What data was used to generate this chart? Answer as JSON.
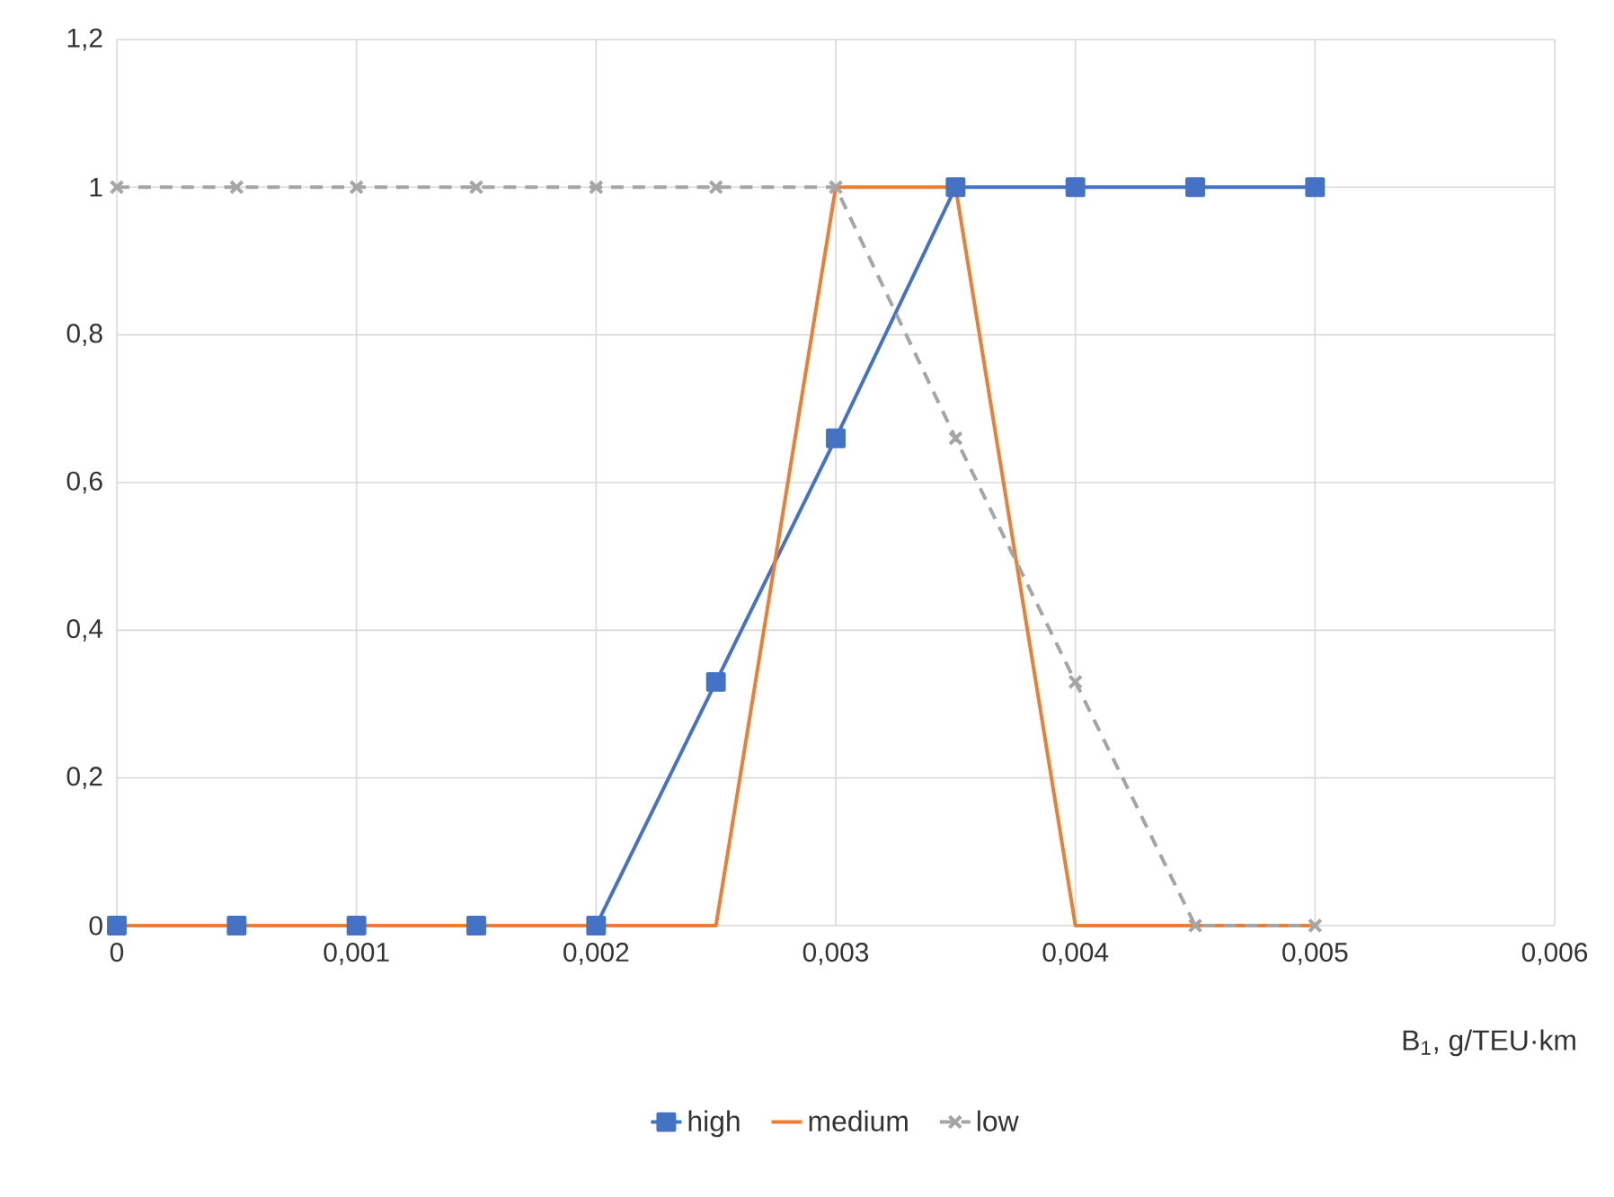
{
  "chart_data": {
    "type": "line",
    "xlabel": "B$_{1}$, g/TEU·km",
    "x": [
      0,
      0.0005,
      0.001,
      0.0015,
      0.002,
      0.0025,
      0.003,
      0.0035,
      0.004,
      0.0045,
      0.005
    ],
    "series": [
      {
        "name": "high",
        "color": "#4472c4",
        "marker": "square",
        "line_style": "solid",
        "values": [
          0,
          0,
          0,
          0,
          0,
          0.33,
          0.66,
          1,
          1,
          1,
          1
        ]
      },
      {
        "name": "medium",
        "color": "#ed7d31",
        "marker": "none",
        "line_style": "solid",
        "values": [
          0,
          0,
          0,
          0,
          0,
          0,
          1,
          1,
          0,
          0,
          0
        ]
      },
      {
        "name": "low",
        "color": "#a5a5a5",
        "marker": "cross",
        "line_style": "dashed",
        "values": [
          1,
          1,
          1,
          1,
          1,
          1,
          1,
          0.66,
          0.33,
          0,
          0
        ]
      }
    ],
    "xlim": [
      0,
      0.006
    ],
    "ylim": [
      0,
      1.2
    ],
    "xticks": [
      0,
      {
        "value": 0.001,
        "label": "0,001"
      },
      {
        "value": 0.002,
        "label": "0,002"
      },
      {
        "value": 0.003,
        "label": "0,003"
      },
      {
        "value": 0.004,
        "label": "0,004"
      },
      {
        "value": 0.005,
        "label": "0,005"
      },
      {
        "value": 0.006,
        "label": "0,006"
      }
    ],
    "yticks": [
      0,
      {
        "value": 0.2,
        "label": "0,2"
      },
      {
        "value": 0.4,
        "label": "0,4"
      },
      {
        "value": 0.6,
        "label": "0,6"
      },
      {
        "value": 0.8,
        "label": "0,8"
      },
      1,
      {
        "value": 1.2,
        "label": "1,2"
      }
    ],
    "grid": true,
    "legend": "bottom"
  }
}
